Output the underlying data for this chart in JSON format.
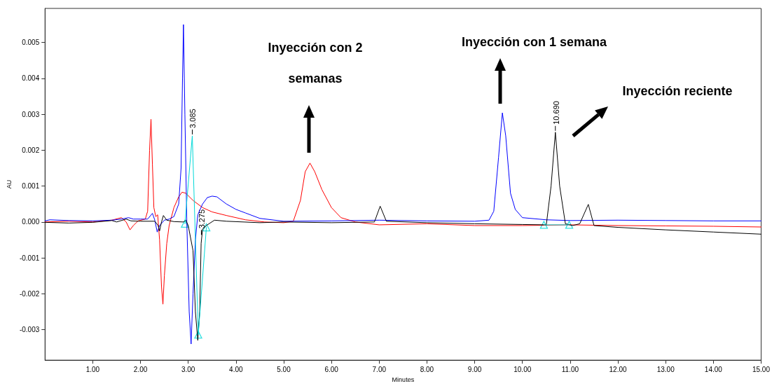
{
  "chart_data": {
    "type": "line",
    "xlabel": "Minutes",
    "ylabel": "AU",
    "xlim": [
      0,
      15
    ],
    "xticks": [
      {
        "value": 1,
        "label": "1.00"
      },
      {
        "value": 2,
        "label": "2.00"
      },
      {
        "value": 3,
        "label": "3.00"
      },
      {
        "value": 4,
        "label": "4.00"
      },
      {
        "value": 5,
        "label": "5.00"
      },
      {
        "value": 6,
        "label": "6.00"
      },
      {
        "value": 7,
        "label": "7.00"
      },
      {
        "value": 8,
        "label": "8.00"
      },
      {
        "value": 9,
        "label": "9.00"
      },
      {
        "value": 10,
        "label": "10.00"
      },
      {
        "value": 11,
        "label": "11.00"
      },
      {
        "value": 12,
        "label": "12.00"
      },
      {
        "value": 13,
        "label": "13.00"
      },
      {
        "value": 14,
        "label": "14.00"
      },
      {
        "value": 15,
        "label": "15.00"
      }
    ],
    "ylim": [
      -0.00385,
      0.00595
    ],
    "yticks": [
      -0.003,
      -0.002,
      -0.001,
      {
        "value": 0,
        "label": "0.000"
      },
      0.001,
      0.002,
      0.003,
      0.004,
      0.005
    ],
    "grid": false,
    "line_style": "solid",
    "marker": "none",
    "series": [
      {
        "color": "#ff0000",
        "x": [
          0,
          0.5,
          1.0,
          1.4,
          1.6,
          1.7,
          1.78,
          1.85,
          1.95,
          2.1,
          2.15,
          2.19,
          2.22,
          2.25,
          2.28,
          2.32,
          2.36,
          2.4,
          2.44,
          2.47,
          2.5,
          2.55,
          2.6,
          2.7,
          2.8,
          2.87,
          2.95,
          3.1,
          3.3,
          3.5,
          3.8,
          4.2,
          4.6,
          5.0,
          5.2,
          5.35,
          5.45,
          5.55,
          5.65,
          5.8,
          6.0,
          6.2,
          6.5,
          7.0,
          8.0,
          9.0,
          10.0,
          11.0,
          12.0,
          13.0,
          14.0,
          15.0
        ],
        "values": [
          0.0,
          2e-05,
          0.0,
          5e-05,
          0.00012,
          0.0,
          -0.00022,
          -0.0001,
          3e-05,
          8e-05,
          0.0003,
          0.002,
          0.00286,
          0.0016,
          0.0004,
          0.00015,
          0.0002,
          -0.0005,
          -0.0018,
          -0.00229,
          -0.0015,
          -0.0006,
          -0.0001,
          0.0004,
          0.0007,
          0.00083,
          0.0008,
          0.0006,
          0.0004,
          0.00028,
          0.00018,
          6e-05,
          0.0,
          -2e-05,
          2e-05,
          0.0006,
          0.0014,
          0.00164,
          0.0014,
          0.0009,
          0.0004,
          0.00012,
          0.0,
          -8e-05,
          -5e-05,
          -0.0001,
          -0.0001,
          -8e-05,
          -0.0001,
          -0.00011,
          -0.00012,
          -0.00014
        ]
      },
      {
        "color": "#0000ff",
        "x": [
          0,
          0.1,
          0.5,
          1.0,
          1.4,
          1.6,
          1.75,
          1.85,
          2.0,
          2.15,
          2.25,
          2.3,
          2.35,
          2.4,
          2.5,
          2.6,
          2.7,
          2.8,
          2.85,
          2.88,
          2.9,
          2.93,
          2.97,
          3.02,
          3.06,
          3.1,
          3.15,
          3.2,
          3.3,
          3.4,
          3.5,
          3.6,
          3.8,
          4.0,
          4.2,
          4.5,
          5.0,
          6.0,
          7.0,
          8.0,
          9.0,
          9.3,
          9.4,
          9.5,
          9.58,
          9.65,
          9.75,
          9.85,
          10.0,
          10.5,
          11.0,
          12.0,
          13.0,
          14.0,
          15.0
        ],
        "values": [
          3e-05,
          6e-05,
          4e-05,
          3e-05,
          5e-05,
          8e-05,
          0.00012,
          8e-05,
          8e-05,
          8e-05,
          0.00024,
          5e-05,
          -0.00028,
          -0.0001,
          5e-05,
          8e-05,
          0.00015,
          0.0005,
          0.0015,
          0.004,
          0.0055,
          0.003,
          0.0,
          -0.0025,
          -0.0034,
          -0.002,
          -0.0005,
          0.0002,
          0.0005,
          0.00068,
          0.00072,
          0.0007,
          0.0005,
          0.00035,
          0.00025,
          0.0001,
          2e-05,
          3e-05,
          5e-05,
          3e-05,
          2e-05,
          5e-05,
          0.0003,
          0.0018,
          0.00304,
          0.0024,
          0.0008,
          0.00035,
          0.00012,
          6e-05,
          4e-05,
          5e-05,
          4e-05,
          3e-05,
          3e-05
        ]
      },
      {
        "color": "#000000",
        "x": [
          0,
          0.5,
          1.0,
          1.4,
          1.5,
          1.7,
          1.8,
          2.0,
          2.3,
          2.37,
          2.4,
          2.44,
          2.48,
          2.55,
          2.7,
          2.9,
          2.95,
          3.0,
          3.1,
          3.15,
          3.2,
          3.24,
          3.27,
          3.3,
          3.4,
          3.55,
          3.8,
          4.5,
          5.0,
          6.0,
          6.9,
          7.02,
          7.15,
          8.0,
          9.0,
          10.0,
          10.5,
          10.6,
          10.69,
          10.78,
          10.9,
          11.05,
          11.2,
          11.38,
          11.5,
          12.0,
          13.0,
          14.0,
          15.0
        ],
        "values": [
          -1e-05,
          -3e-05,
          -1e-05,
          4e-05,
          0.0,
          8e-05,
          3e-05,
          2e-05,
          2e-05,
          -0.0001,
          -0.00025,
          0.0,
          0.00018,
          5e-05,
          1e-05,
          0.0,
          5e-05,
          -0.0001,
          -0.0008,
          -0.0025,
          -0.0033,
          -0.0025,
          -0.0006,
          -0.0002,
          -8e-05,
          5e-05,
          2e-05,
          -2e-05,
          0.0,
          -2e-05,
          0.0,
          0.00044,
          2e-05,
          -2e-05,
          -5e-05,
          -7e-05,
          -8e-05,
          0.001,
          0.0025,
          0.001,
          -5e-05,
          -0.0001,
          -5e-05,
          0.00049,
          -0.0001,
          -0.00015,
          -0.00022,
          -0.00028,
          -0.00034
        ]
      },
      {
        "color": "#00d8d8",
        "x": [
          2.93,
          3.085,
          3.21,
          3.38,
          3.4,
          10.45,
          10.98
        ],
        "values": [
          -5e-05,
          0.0024,
          -0.00314,
          -0.00015,
          null,
          -8e-05,
          -8e-05
        ]
      },
      {
        "type": "scatter",
        "marker": "triangle",
        "color": "#00d8d8",
        "x": [
          2.93,
          3.21,
          3.38,
          10.45,
          10.98
        ],
        "values": [
          -5e-05,
          -0.00314,
          -0.00015,
          -8e-05,
          -8e-05
        ]
      }
    ],
    "annotations": [
      "Inyección con 2 semanas",
      "Inyección con 1 semana",
      "Inyección reciente",
      {
        "text": "3.085",
        "x": 3.085,
        "y": 0.0024
      },
      {
        "text": "3.275",
        "x": 3.275,
        "y": -0.0004
      },
      {
        "text": "10.690",
        "x": 10.69,
        "y": 0.0025
      }
    ]
  }
}
